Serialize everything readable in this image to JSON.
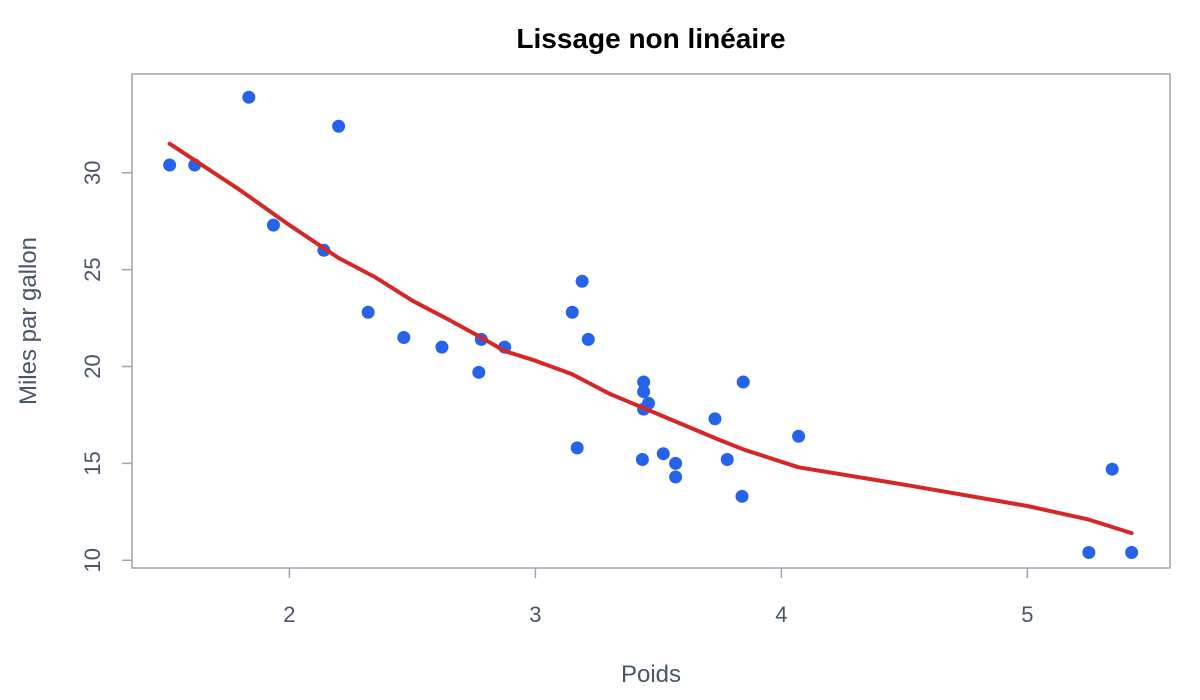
{
  "chart_data": {
    "type": "scatter",
    "title": "Lissage non linéaire",
    "xlabel": "Poids",
    "ylabel": "Miles par gallon",
    "xlim": [
      1.36,
      5.58
    ],
    "ylim": [
      9.6,
      35.1
    ],
    "xticks": [
      2,
      3,
      4,
      5
    ],
    "yticks": [
      10,
      15,
      20,
      25,
      30
    ],
    "grid": false,
    "point_color": "#2563eb",
    "line_color": "#d62728",
    "points": [
      {
        "x": 1.513,
        "y": 30.4
      },
      {
        "x": 1.615,
        "y": 30.4
      },
      {
        "x": 1.835,
        "y": 33.9
      },
      {
        "x": 1.935,
        "y": 27.3
      },
      {
        "x": 2.14,
        "y": 26.0
      },
      {
        "x": 2.2,
        "y": 32.4
      },
      {
        "x": 2.32,
        "y": 22.8
      },
      {
        "x": 2.465,
        "y": 21.5
      },
      {
        "x": 2.62,
        "y": 21.0
      },
      {
        "x": 2.77,
        "y": 19.7
      },
      {
        "x": 2.78,
        "y": 21.4
      },
      {
        "x": 2.875,
        "y": 21.0
      },
      {
        "x": 3.15,
        "y": 22.8
      },
      {
        "x": 3.17,
        "y": 15.8
      },
      {
        "x": 3.19,
        "y": 24.4
      },
      {
        "x": 3.215,
        "y": 21.4
      },
      {
        "x": 3.435,
        "y": 15.2
      },
      {
        "x": 3.44,
        "y": 19.2
      },
      {
        "x": 3.44,
        "y": 18.7
      },
      {
        "x": 3.44,
        "y": 17.8
      },
      {
        "x": 3.46,
        "y": 18.1
      },
      {
        "x": 3.52,
        "y": 15.5
      },
      {
        "x": 3.57,
        "y": 15.0
      },
      {
        "x": 3.57,
        "y": 14.3
      },
      {
        "x": 3.73,
        "y": 17.3
      },
      {
        "x": 3.78,
        "y": 15.2
      },
      {
        "x": 3.84,
        "y": 13.3
      },
      {
        "x": 3.845,
        "y": 19.2
      },
      {
        "x": 4.07,
        "y": 16.4
      },
      {
        "x": 5.25,
        "y": 10.4
      },
      {
        "x": 5.345,
        "y": 14.7
      },
      {
        "x": 5.424,
        "y": 10.4
      }
    ],
    "smooth": [
      {
        "x": 1.513,
        "y": 31.5
      },
      {
        "x": 1.8,
        "y": 29.1
      },
      {
        "x": 2.0,
        "y": 27.3
      },
      {
        "x": 2.2,
        "y": 25.6
      },
      {
        "x": 2.35,
        "y": 24.6
      },
      {
        "x": 2.5,
        "y": 23.4
      },
      {
        "x": 2.65,
        "y": 22.4
      },
      {
        "x": 2.78,
        "y": 21.5
      },
      {
        "x": 2.875,
        "y": 20.8
      },
      {
        "x": 3.0,
        "y": 20.3
      },
      {
        "x": 3.15,
        "y": 19.6
      },
      {
        "x": 3.3,
        "y": 18.6
      },
      {
        "x": 3.45,
        "y": 17.8
      },
      {
        "x": 3.6,
        "y": 17.0
      },
      {
        "x": 3.75,
        "y": 16.2
      },
      {
        "x": 3.85,
        "y": 15.7
      },
      {
        "x": 4.07,
        "y": 14.8
      },
      {
        "x": 4.5,
        "y": 13.9
      },
      {
        "x": 5.0,
        "y": 12.8
      },
      {
        "x": 5.25,
        "y": 12.1
      },
      {
        "x": 5.424,
        "y": 11.4
      }
    ]
  }
}
